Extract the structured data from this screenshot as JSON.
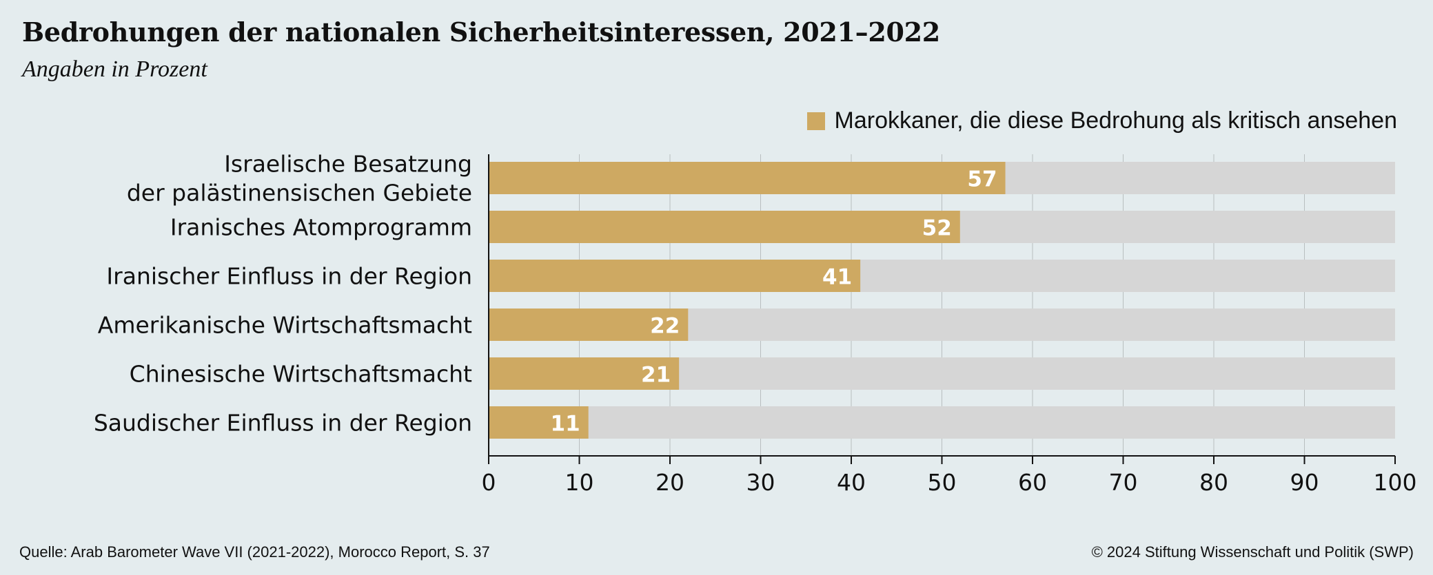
{
  "title": "Bedrohungen der nationalen Sicherheitsinteressen, 2021–2022",
  "subtitle": "Angaben in Prozent",
  "legend": {
    "label": "Marokkaner, die diese Bedrohung als kritisch ansehen"
  },
  "footer": {
    "source": "Quelle: Arab Barometer Wave VII (2021-2022), Morocco Report, S. 37",
    "copyright": "© 2024 Stiftung Wissenschaft und Politik (SWP)"
  },
  "colors": {
    "background": "#e4ecee",
    "bar": "#cea962",
    "track": "#d6d6d6",
    "gridline": "#b8bebf",
    "axis": "#111111",
    "value_label": "#ffffff"
  },
  "chart_data": {
    "type": "bar",
    "orientation": "horizontal",
    "categories": [
      [
        "Israelische Besatzung",
        "der palästinensischen Gebiete"
      ],
      [
        "Iranisches Atomprogramm"
      ],
      [
        "Iranischer Einfluss in der Region"
      ],
      [
        "Amerikanische Wirtschaftsmacht"
      ],
      [
        "Chinesische Wirtschaftsmacht"
      ],
      [
        "Saudischer Einfluss in der Region"
      ]
    ],
    "series": [
      {
        "name": "Marokkaner, die diese Bedrohung als kritisch ansehen",
        "values": [
          57,
          52,
          41,
          22,
          21,
          11
        ]
      }
    ],
    "xlim": [
      0,
      100
    ],
    "xticks": [
      0,
      10,
      20,
      30,
      40,
      50,
      60,
      70,
      80,
      90,
      100
    ],
    "grid": true,
    "legend_position": "top-right",
    "data_labels": true
  }
}
